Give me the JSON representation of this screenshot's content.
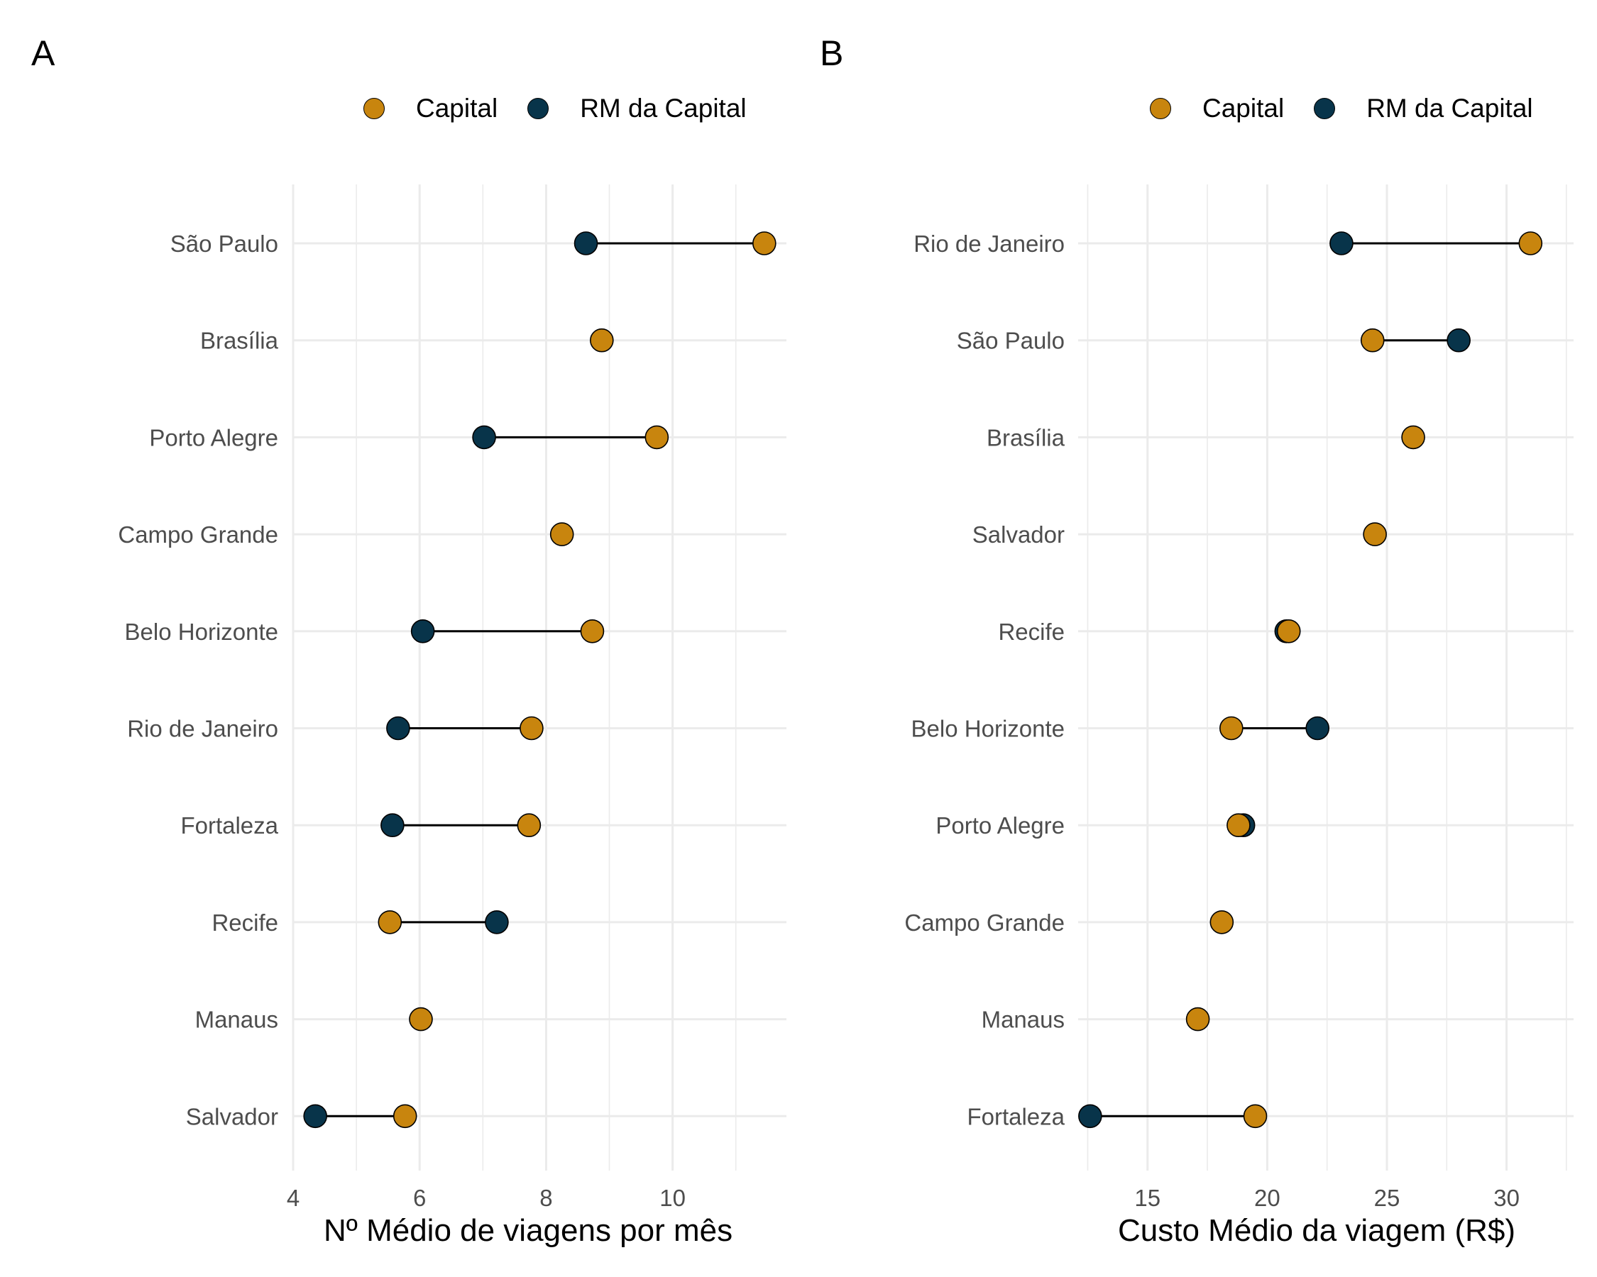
{
  "chart_data": [
    {
      "type": "dumbbell",
      "panel_label": "A",
      "xlabel": "Nº Médio de viagens por mês",
      "ylabel": "",
      "xlim": [
        4,
        11.8
      ],
      "xticks": [
        4,
        6,
        8,
        10
      ],
      "grid": true,
      "legend": [
        "Capital",
        "RM da Capital"
      ],
      "legend_position": "top",
      "categories": [
        "São Paulo",
        "Brasília",
        "Porto Alegre",
        "Campo Grande",
        "Belo Horizonte",
        "Rio de Janeiro",
        "Fortaleza",
        "Recife",
        "Manaus",
        "Salvador"
      ],
      "series": [
        {
          "name": "Capital",
          "color": "#C8850E",
          "values": [
            11.45,
            8.88,
            9.75,
            8.25,
            8.73,
            7.77,
            7.73,
            5.53,
            6.02,
            5.77
          ]
        },
        {
          "name": "RM da Capital",
          "color": "#08344A",
          "values": [
            8.63,
            null,
            7.02,
            null,
            6.05,
            5.66,
            5.57,
            7.22,
            null,
            4.35
          ]
        }
      ]
    },
    {
      "type": "dumbbell",
      "panel_label": "B",
      "xlabel": "Custo Médio da viagem (R$)",
      "ylabel": "",
      "xlim": [
        12.1,
        32.8
      ],
      "xticks": [
        15,
        20,
        25,
        30
      ],
      "grid": true,
      "legend": [
        "Capital",
        "RM da Capital"
      ],
      "legend_position": "top",
      "categories": [
        "Rio de Janeiro",
        "São Paulo",
        "Brasília",
        "Salvador",
        "Recife",
        "Belo Horizonte",
        "Porto Alegre",
        "Campo Grande",
        "Manaus",
        "Fortaleza"
      ],
      "series": [
        {
          "name": "Capital",
          "color": "#C8850E",
          "values": [
            31.0,
            24.4,
            26.1,
            24.5,
            20.9,
            18.5,
            18.8,
            18.1,
            17.1,
            19.5
          ]
        },
        {
          "name": "RM da Capital",
          "color": "#08344A",
          "values": [
            23.1,
            28.0,
            null,
            null,
            20.8,
            22.1,
            19.0,
            null,
            null,
            12.6
          ]
        }
      ]
    }
  ]
}
